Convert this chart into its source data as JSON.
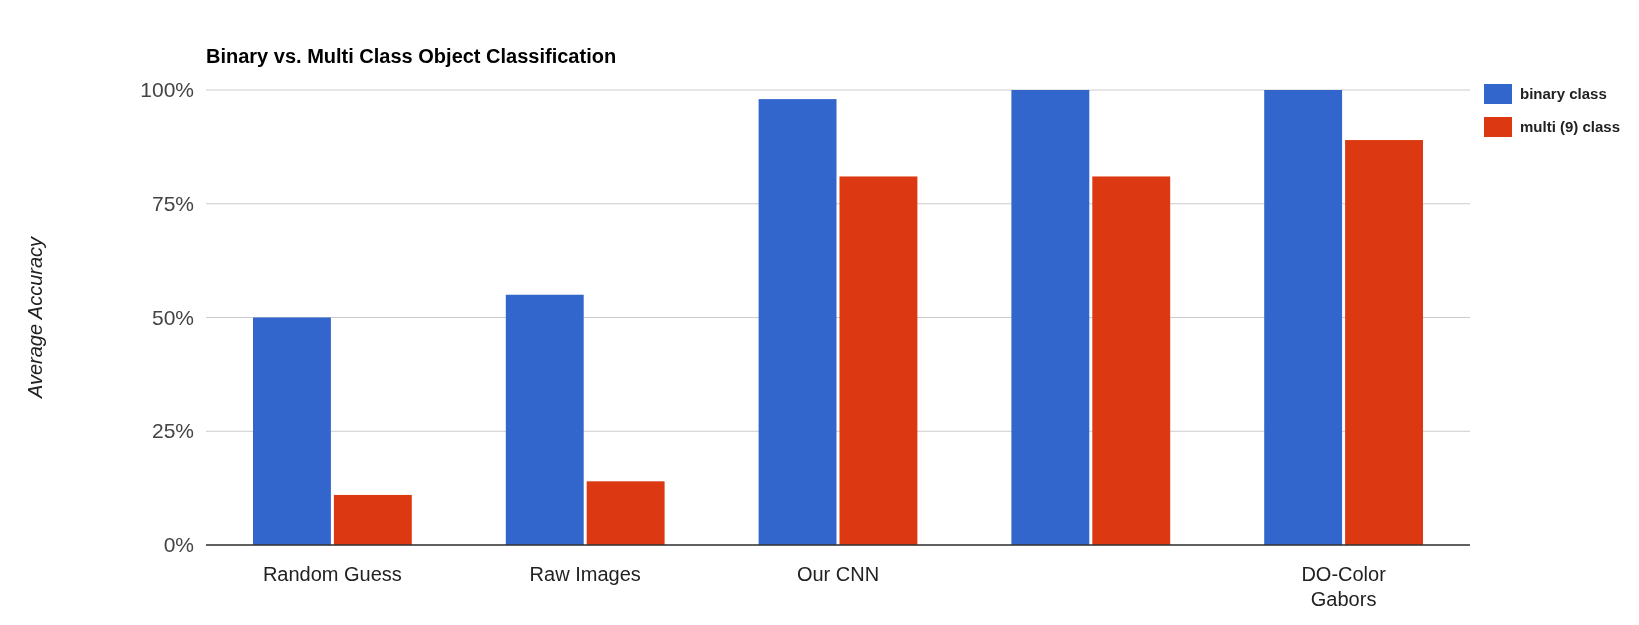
{
  "chart_data": {
    "type": "bar",
    "title": "Binary vs. Multi Class Object Classification",
    "ylabel": "Average Accuracy",
    "categories": [
      "Random Guess",
      "Raw Images",
      "Our CNN",
      null,
      "DO-Color Gabors"
    ],
    "series": [
      {
        "name": "binary class",
        "color": "#3366cc",
        "values": [
          50,
          55,
          98,
          100,
          100
        ]
      },
      {
        "name": "multi (9) class",
        "color": "#dc3912",
        "values": [
          11,
          14,
          81,
          81,
          89
        ]
      }
    ],
    "ylim": [
      0,
      100
    ],
    "yticks": [
      {
        "value": 0,
        "label": "0%"
      },
      {
        "value": 25,
        "label": "25%"
      },
      {
        "value": 50,
        "label": "50%"
      },
      {
        "value": 75,
        "label": "75%"
      },
      {
        "value": 100,
        "label": "100%"
      }
    ],
    "grid": "y",
    "legend": "top right"
  }
}
